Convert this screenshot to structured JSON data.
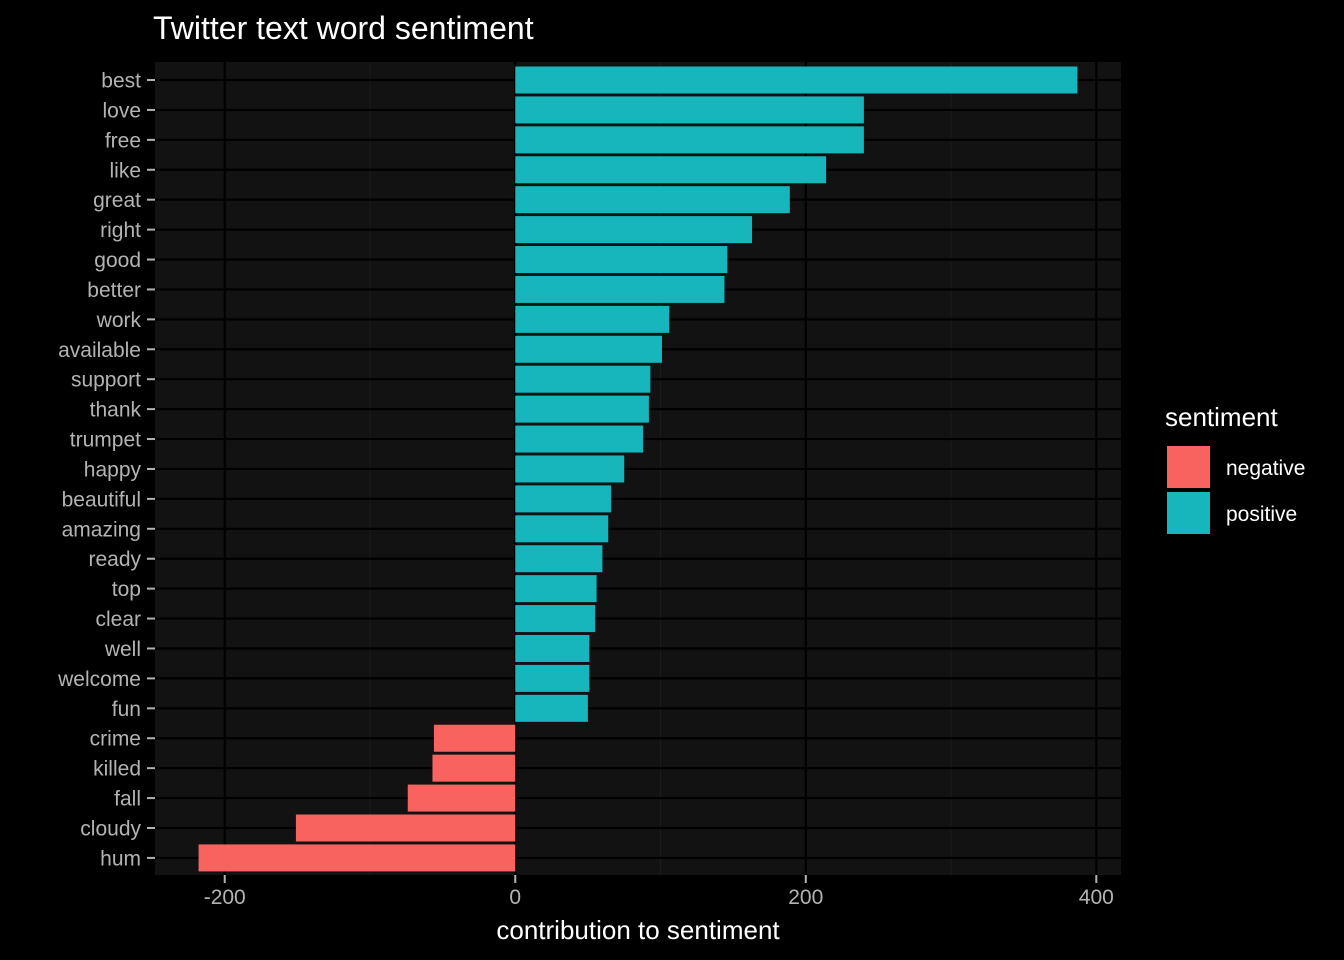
{
  "chart_data": {
    "type": "bar",
    "orientation": "horizontal",
    "title": "Twitter text word sentiment",
    "xlabel": "contribution to sentiment",
    "ylabel": "",
    "xlim": [
      -248,
      417
    ],
    "xticks": [
      -200,
      0,
      200,
      400
    ],
    "xtick_labels": [
      "-200",
      "0",
      "200",
      "400"
    ],
    "grid": true,
    "legend": {
      "title": "sentiment",
      "placement": "right",
      "entries": [
        {
          "label": "negative",
          "color": "#F8635F"
        },
        {
          "label": "positive",
          "color": "#17B6BC"
        }
      ]
    },
    "categories": [
      "best",
      "love",
      "free",
      "like",
      "great",
      "right",
      "good",
      "better",
      "work",
      "available",
      "support",
      "thank",
      "trumpet",
      "happy",
      "beautiful",
      "amazing",
      "ready",
      "top",
      "clear",
      "well",
      "welcome",
      "fun",
      "crime",
      "killed",
      "fall",
      "cloudy",
      "hum"
    ],
    "values": [
      387,
      240,
      240,
      214,
      189,
      163,
      146,
      144,
      106,
      101,
      93,
      92,
      88,
      75,
      66,
      64,
      60,
      56,
      55,
      51,
      51,
      50,
      -56,
      -57,
      -74,
      -151,
      -218
    ],
    "sentiment": [
      "positive",
      "positive",
      "positive",
      "positive",
      "positive",
      "positive",
      "positive",
      "positive",
      "positive",
      "positive",
      "positive",
      "positive",
      "positive",
      "positive",
      "positive",
      "positive",
      "positive",
      "positive",
      "positive",
      "positive",
      "positive",
      "positive",
      "negative",
      "negative",
      "negative",
      "negative",
      "negative"
    ]
  }
}
